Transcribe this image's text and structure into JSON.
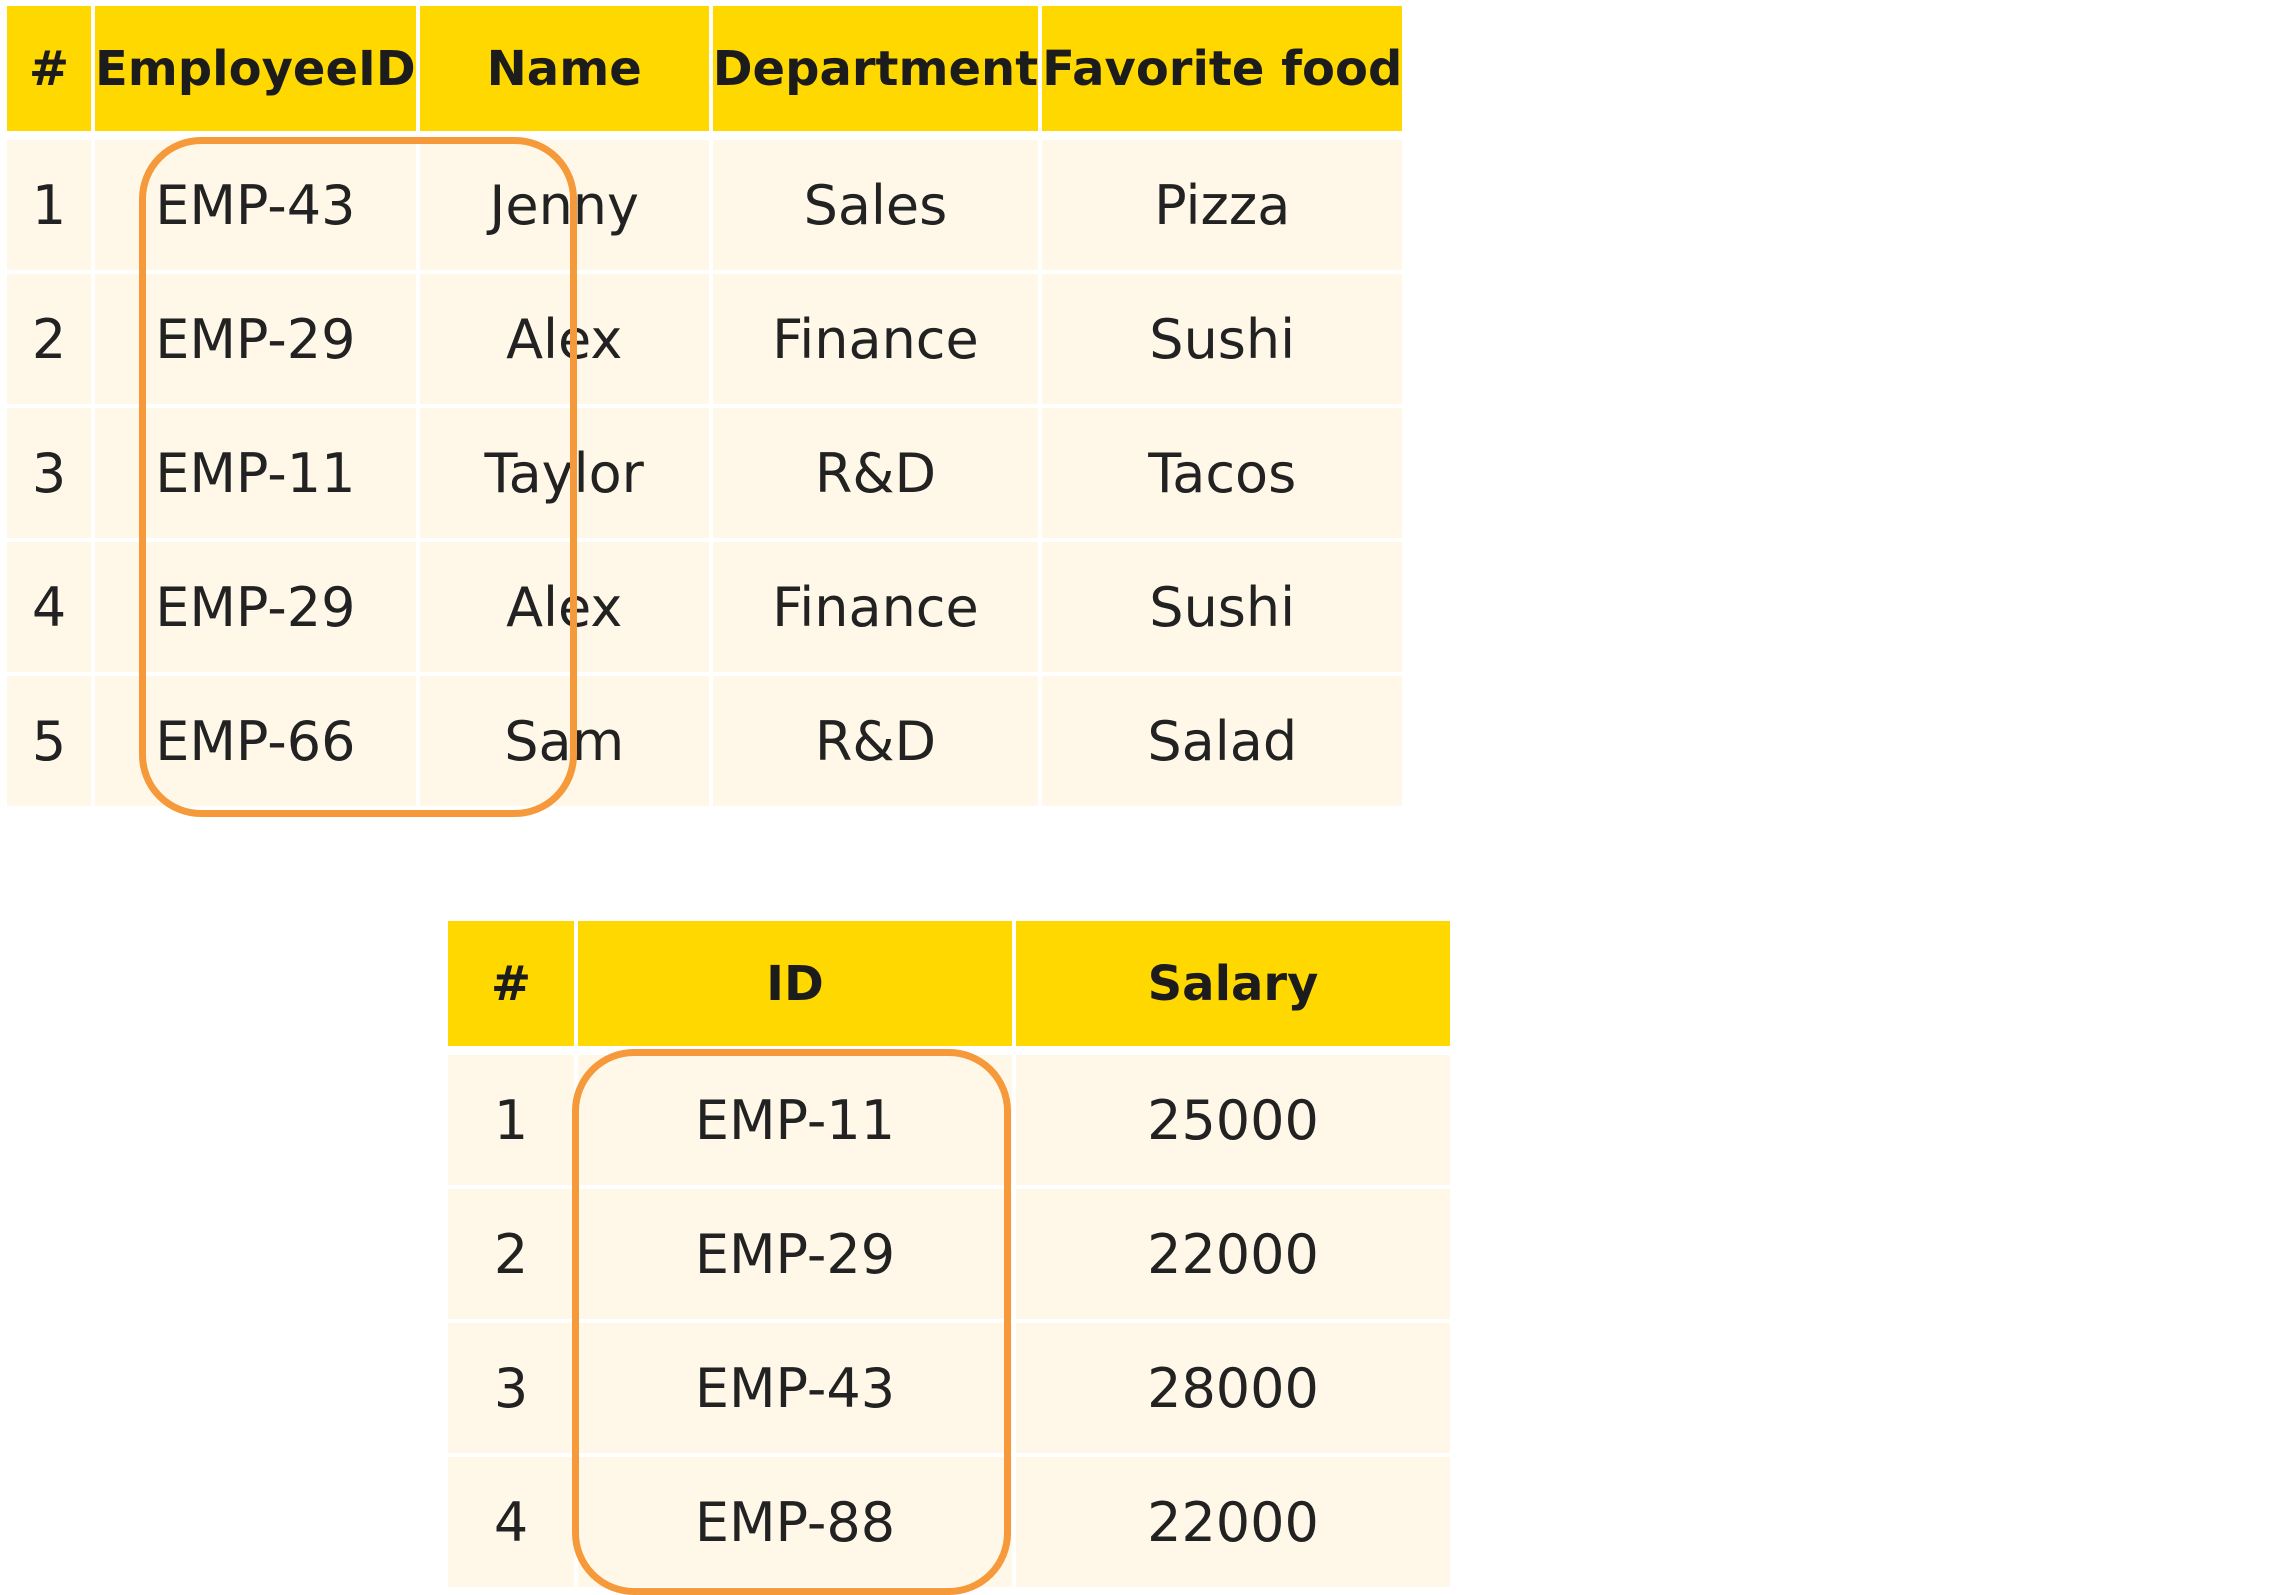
{
  "employees_table": {
    "headers": [
      "#",
      "EmployeeID",
      "Name",
      "Department",
      "Favorite food"
    ],
    "rows": [
      [
        "1",
        "EMP-43",
        "Jenny",
        "Sales",
        "Pizza"
      ],
      [
        "2",
        "EMP-29",
        "Alex",
        "Finance",
        "Sushi"
      ],
      [
        "3",
        "EMP-11",
        "Taylor",
        "R&D",
        "Tacos"
      ],
      [
        "4",
        "EMP-29",
        "Alex",
        "Finance",
        "Sushi"
      ],
      [
        "5",
        "EMP-66",
        "Sam",
        "R&D",
        "Salad"
      ]
    ]
  },
  "salaries_table": {
    "headers": [
      "#",
      "ID",
      "Salary"
    ],
    "rows": [
      [
        "1",
        "EMP-11",
        "25000"
      ],
      [
        "2",
        "EMP-29",
        "22000"
      ],
      [
        "3",
        "EMP-43",
        "28000"
      ],
      [
        "4",
        "EMP-88",
        "22000"
      ]
    ]
  },
  "colors": {
    "header_fill": "#ffd800",
    "row_fill": "#fff8e8",
    "highlight_outline": "#f5993a",
    "text": "#222222"
  },
  "highlighted_columns": {
    "employees_table": "EmployeeID",
    "salaries_table": "ID"
  }
}
